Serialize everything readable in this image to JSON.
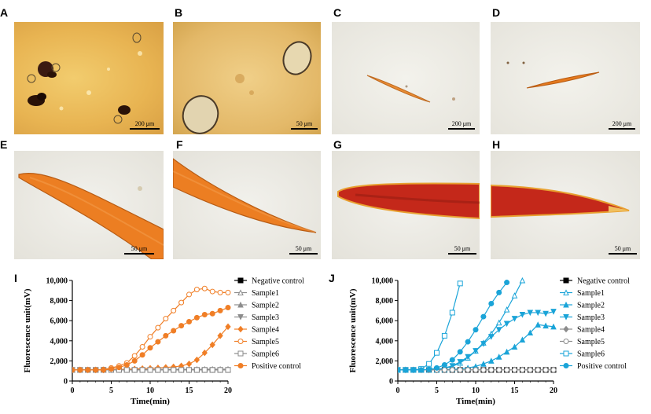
{
  "panels": {
    "A": {
      "label": "A",
      "scale": "200 μm"
    },
    "B": {
      "label": "B",
      "scale": "50 μm"
    },
    "C": {
      "label": "C",
      "scale": "200 μm"
    },
    "D": {
      "label": "D",
      "scale": "200 μm"
    },
    "E": {
      "label": "E",
      "scale": "50 μm"
    },
    "F": {
      "label": "F",
      "scale": "50 μm"
    },
    "G": {
      "label": "G",
      "scale": "50 μm"
    },
    "H": {
      "label": "H",
      "scale": "50 μm"
    }
  },
  "colors": {
    "orange": "#f07e26",
    "blue": "#1aa4d8",
    "gray": "#8c8c8c",
    "black": "#000000"
  },
  "chart_data": [
    {
      "panel_label": "I",
      "type": "line",
      "xlabel": "Time(min)",
      "ylabel": "Fluorescence unit(mV)",
      "xlim": [
        0,
        20
      ],
      "ylim": [
        0,
        10000
      ],
      "x_ticks": [
        "0",
        "5",
        "10",
        "15",
        "20"
      ],
      "y_ticks": [
        "0",
        "2,000",
        "4,000",
        "6,000",
        "8,000",
        "10,000"
      ],
      "legend_position": "right",
      "series": [
        {
          "name": "Negative control",
          "color": "#000000",
          "marker": "square-filled",
          "x": [
            0,
            1,
            2,
            3,
            4,
            5,
            6,
            7,
            8,
            9,
            10,
            11,
            12,
            13,
            14,
            15,
            16,
            17,
            18,
            19,
            20
          ],
          "y": [
            1100,
            1100,
            1100,
            1100,
            1100,
            1100,
            1100,
            1100,
            1100,
            1100,
            1100,
            1100,
            1100,
            1100,
            1100,
            1100,
            1100,
            1100,
            1100,
            1100,
            1100
          ]
        },
        {
          "name": "Sample1",
          "color": "#8c8c8c",
          "marker": "triangle-open",
          "x": [
            0,
            1,
            2,
            3,
            4,
            5,
            6,
            7,
            8,
            9,
            10,
            11,
            12,
            13,
            14,
            15,
            16,
            17,
            18,
            19,
            20
          ],
          "y": [
            1100,
            1100,
            1100,
            1100,
            1100,
            1120,
            1120,
            1130,
            1130,
            1140,
            1140,
            1150,
            1150,
            1150,
            1160,
            1160,
            1160,
            1170,
            1170,
            1170,
            1180
          ]
        },
        {
          "name": "Sample2",
          "color": "#8c8c8c",
          "marker": "triangle-filled",
          "x": [
            0,
            1,
            2,
            3,
            4,
            5,
            6,
            7,
            8,
            9,
            10,
            11,
            12,
            13,
            14,
            15,
            16,
            17,
            18,
            19,
            20
          ],
          "y": [
            1100,
            1100,
            1100,
            1100,
            1100,
            1110,
            1110,
            1110,
            1120,
            1120,
            1120,
            1130,
            1130,
            1130,
            1140,
            1140,
            1140,
            1150,
            1150,
            1150,
            1150
          ]
        },
        {
          "name": "Sample3",
          "color": "#8c8c8c",
          "marker": "triangle-down-filled",
          "x": [
            0,
            1,
            2,
            3,
            4,
            5,
            6,
            7,
            8,
            9,
            10,
            11,
            12,
            13,
            14,
            15,
            16,
            17,
            18,
            19,
            20
          ],
          "y": [
            1100,
            1100,
            1100,
            1100,
            1100,
            1100,
            1100,
            1100,
            1100,
            1100,
            1100,
            1100,
            1100,
            1100,
            1100,
            1100,
            1100,
            1100,
            1100,
            1100,
            1100
          ]
        },
        {
          "name": "Sample4",
          "color": "#f07e26",
          "marker": "diamond-filled",
          "x": [
            0,
            1,
            2,
            3,
            4,
            5,
            6,
            7,
            8,
            9,
            10,
            11,
            12,
            13,
            14,
            15,
            16,
            17,
            18,
            19,
            20
          ],
          "y": [
            1100,
            1100,
            1100,
            1100,
            1100,
            1120,
            1150,
            1170,
            1200,
            1230,
            1260,
            1300,
            1350,
            1400,
            1500,
            1700,
            2100,
            2800,
            3600,
            4500,
            5400
          ]
        },
        {
          "name": "Sample5",
          "color": "#f07e26",
          "marker": "circle-open",
          "x": [
            0,
            1,
            2,
            3,
            4,
            5,
            6,
            7,
            8,
            9,
            10,
            11,
            12,
            13,
            14,
            15,
            16,
            17,
            18,
            19,
            20
          ],
          "y": [
            1100,
            1100,
            1100,
            1100,
            1150,
            1300,
            1500,
            1800,
            2500,
            3400,
            4400,
            5300,
            6200,
            7000,
            7800,
            8600,
            9100,
            9200,
            8900,
            8800,
            8800
          ]
        },
        {
          "name": "Sample6",
          "color": "#8c8c8c",
          "marker": "square-open",
          "x": [
            0,
            1,
            2,
            3,
            4,
            5,
            6,
            7,
            8,
            9,
            10,
            11,
            12,
            13,
            14,
            15,
            16,
            17,
            18,
            19,
            20
          ],
          "y": [
            1100,
            1100,
            1100,
            1100,
            1100,
            1100,
            1100,
            1100,
            1100,
            1100,
            1100,
            1100,
            1100,
            1100,
            1100,
            1100,
            1100,
            1100,
            1100,
            1100,
            1100
          ]
        },
        {
          "name": "Positive control",
          "color": "#f07e26",
          "marker": "circle-filled",
          "x": [
            0,
            1,
            2,
            3,
            4,
            5,
            6,
            7,
            8,
            9,
            10,
            11,
            12,
            13,
            14,
            15,
            16,
            17,
            18,
            19,
            20
          ],
          "y": [
            1100,
            1100,
            1100,
            1100,
            1100,
            1200,
            1350,
            1600,
            2000,
            2600,
            3300,
            3900,
            4500,
            5000,
            5500,
            5900,
            6300,
            6600,
            6700,
            7000,
            7300
          ]
        }
      ]
    },
    {
      "panel_label": "J",
      "type": "line",
      "xlabel": "Time(min)",
      "ylabel": "Fluorescence unit(mV)",
      "xlim": [
        0,
        20
      ],
      "ylim": [
        0,
        10000
      ],
      "x_ticks": [
        "0",
        "5",
        "10",
        "15",
        "20"
      ],
      "y_ticks": [
        "0",
        "2,000",
        "4,000",
        "6,000",
        "8,000",
        "10,000"
      ],
      "legend_position": "right",
      "series": [
        {
          "name": "Negative control",
          "color": "#000000",
          "marker": "square-filled",
          "x": [
            0,
            1,
            2,
            3,
            4,
            5,
            6,
            7,
            8,
            9,
            10,
            11,
            12,
            13,
            14,
            15,
            16,
            17,
            18,
            19,
            20
          ],
          "y": [
            1100,
            1100,
            1100,
            1100,
            1100,
            1100,
            1100,
            1100,
            1100,
            1100,
            1100,
            1100,
            1100,
            1100,
            1100,
            1100,
            1100,
            1100,
            1100,
            1100,
            1100
          ]
        },
        {
          "name": "Sample1",
          "color": "#1aa4d8",
          "marker": "triangle-open",
          "x": [
            0,
            1,
            2,
            3,
            4,
            5,
            6,
            7,
            8,
            9,
            10,
            11,
            12,
            13,
            14,
            15,
            16
          ],
          "y": [
            1100,
            1100,
            1100,
            1100,
            1100,
            1150,
            1250,
            1450,
            1800,
            2300,
            3000,
            3800,
            4700,
            5800,
            7100,
            8500,
            10000
          ]
        },
        {
          "name": "Sample2",
          "color": "#1aa4d8",
          "marker": "triangle-filled",
          "x": [
            0,
            1,
            2,
            3,
            4,
            5,
            6,
            7,
            8,
            9,
            10,
            11,
            12,
            13,
            14,
            15,
            16,
            17,
            18,
            19,
            20
          ],
          "y": [
            1100,
            1100,
            1100,
            1100,
            1100,
            1100,
            1120,
            1150,
            1200,
            1300,
            1450,
            1700,
            2000,
            2400,
            2900,
            3400,
            4100,
            4800,
            5600,
            5500,
            5400
          ]
        },
        {
          "name": "Sample3",
          "color": "#1aa4d8",
          "marker": "triangle-down-filled",
          "x": [
            0,
            1,
            2,
            3,
            4,
            5,
            6,
            7,
            8,
            9,
            10,
            11,
            12,
            13,
            14,
            15,
            16,
            17,
            18,
            19,
            20
          ],
          "y": [
            1100,
            1100,
            1100,
            1100,
            1100,
            1150,
            1300,
            1500,
            1900,
            2400,
            3000,
            3700,
            4400,
            5100,
            5700,
            6200,
            6600,
            6800,
            6800,
            6700,
            6900
          ]
        },
        {
          "name": "Sample4",
          "color": "#8c8c8c",
          "marker": "diamond-filled",
          "x": [
            0,
            1,
            2,
            3,
            4,
            5,
            6,
            7,
            8,
            9,
            10,
            11,
            12,
            13,
            14,
            15,
            16,
            17,
            18,
            19,
            20
          ],
          "y": [
            1100,
            1100,
            1100,
            1100,
            1100,
            1100,
            1100,
            1100,
            1100,
            1100,
            1100,
            1100,
            1100,
            1100,
            1100,
            1100,
            1100,
            1100,
            1100,
            1100,
            1100
          ]
        },
        {
          "name": "Sample5",
          "color": "#8c8c8c",
          "marker": "circle-open",
          "x": [
            0,
            1,
            2,
            3,
            4,
            5,
            6,
            7,
            8,
            9,
            10,
            11,
            12,
            13,
            14,
            15,
            16,
            17,
            18,
            19,
            20
          ],
          "y": [
            1100,
            1100,
            1100,
            1100,
            1100,
            1100,
            1100,
            1100,
            1100,
            1100,
            1100,
            1100,
            1100,
            1100,
            1100,
            1100,
            1100,
            1100,
            1100,
            1100,
            1100
          ]
        },
        {
          "name": "Sample6",
          "color": "#1aa4d8",
          "marker": "square-open",
          "x": [
            0,
            1,
            2,
            3,
            4,
            5,
            6,
            7,
            8
          ],
          "y": [
            1100,
            1100,
            1100,
            1200,
            1700,
            2800,
            4500,
            6800,
            9700
          ]
        },
        {
          "name": "Positive control",
          "color": "#1aa4d8",
          "marker": "circle-filled",
          "x": [
            0,
            1,
            2,
            3,
            4,
            5,
            6,
            7,
            8,
            9,
            10,
            11,
            12,
            13,
            14
          ],
          "y": [
            1100,
            1100,
            1100,
            1100,
            1150,
            1300,
            1600,
            2100,
            2900,
            3900,
            5100,
            6400,
            7700,
            8800,
            9800
          ]
        }
      ]
    }
  ]
}
